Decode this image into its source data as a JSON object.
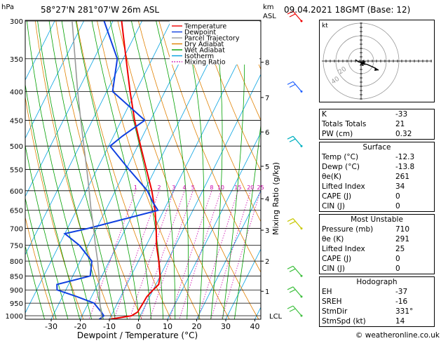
{
  "header": {
    "pressure_unit": "hPa",
    "location": "58°27'N  281°07'W  26m  ASL",
    "km_label": "km",
    "asl_label": "ASL",
    "datetime": "09.04.2021  18GMT  (Base: 12)"
  },
  "chart_data": {
    "type": "line",
    "xlabel": "Dewpoint / Temperature (°C)",
    "ylabel_right": "Mixing Ratio (g/kg)",
    "xlim": [
      -35,
      40
    ],
    "pressure_range": [
      1050,
      300
    ],
    "x_ticks": [
      -30,
      -20,
      -10,
      0,
      10,
      20,
      30,
      40
    ],
    "pressure_ticks": [
      300,
      350,
      400,
      450,
      500,
      550,
      600,
      650,
      700,
      750,
      800,
      850,
      900,
      950,
      1000
    ],
    "km_ticks": [
      {
        "km": "1",
        "p": 905
      },
      {
        "km": "2",
        "p": 800
      },
      {
        "km": "3",
        "p": 705
      },
      {
        "km": "4",
        "p": 620
      },
      {
        "km": "5",
        "p": 543
      },
      {
        "km": "6",
        "p": 472
      },
      {
        "km": "7",
        "p": 410
      },
      {
        "km": "8",
        "p": 355
      }
    ],
    "lcl_label": "LCL",
    "lcl_pressure": 1000,
    "mixing_ratio_labels": [
      "1",
      "2",
      "3",
      "4",
      "5",
      "8",
      "10",
      "15",
      "20",
      "25"
    ],
    "legend": [
      {
        "name": "Temperature",
        "color": "#ee0000"
      },
      {
        "name": "Dewpoint",
        "color": "#1040e0"
      },
      {
        "name": "Parcel Trajectory",
        "color": "#999999"
      },
      {
        "name": "Dry Adiabat",
        "color": "#e08000"
      },
      {
        "name": "Wet Adiabat",
        "color": "#00a000"
      },
      {
        "name": "Isotherm",
        "color": "#00a0e0"
      },
      {
        "name": "Mixing Ratio",
        "color": "#cc00aa"
      }
    ],
    "series": [
      {
        "name": "Temperature",
        "color": "#ee0000",
        "p": [
          1020,
          1000,
          985,
          950,
          925,
          900,
          880,
          850,
          800,
          750,
          700,
          650,
          600,
          550,
          500,
          450,
          400,
          350,
          300
        ],
        "t": [
          -12.3,
          -3.0,
          -1.5,
          -1.2,
          -1.0,
          0.0,
          1.0,
          0.0,
          -3.0,
          -6.5,
          -9.5,
          -13.0,
          -17.5,
          -23.0,
          -29.0,
          -35.5,
          -42.0,
          -49.0,
          -57.0
        ]
      },
      {
        "name": "Dewpoint",
        "color": "#1040e0",
        "p": [
          1020,
          1000,
          985,
          950,
          925,
          900,
          880,
          850,
          800,
          750,
          715,
          700,
          650,
          630,
          600,
          550,
          500,
          480,
          450,
          400,
          350,
          300
        ],
        "t": [
          -13.8,
          -12.5,
          -14.0,
          -18.0,
          -25.0,
          -33.0,
          -34.0,
          -24.0,
          -26.0,
          -33.0,
          -40.0,
          -33.0,
          -12.0,
          -15.0,
          -19.0,
          -29.0,
          -39.5,
          -37.0,
          -32.0,
          -48.0,
          -52.0,
          -63.0
        ]
      },
      {
        "name": "Parcel Trajectory",
        "color": "#999999",
        "p": [
          1020,
          1000,
          950,
          900,
          850,
          800,
          750,
          700,
          650,
          600,
          550,
          500,
          450,
          400,
          350,
          300
        ],
        "t": [
          -12.3,
          -13.3,
          -16.0,
          -18.5,
          -21.0,
          -24.0,
          -27.5,
          -31.0,
          -35.0,
          -39.0,
          -43.5,
          -48.5,
          -54.0,
          -60.0,
          -66.5,
          -74.0
        ]
      }
    ],
    "wind_barbs": [
      {
        "p": 300,
        "color": "#ee0000"
      },
      {
        "p": 400,
        "color": "#2060ff"
      },
      {
        "p": 500,
        "color": "#00b0c0"
      },
      {
        "p": 700,
        "color": "#c8c800"
      },
      {
        "p": 850,
        "color": "#40c040"
      },
      {
        "p": 925,
        "color": "#40c040"
      },
      {
        "p": 1000,
        "color": "#40c040"
      }
    ]
  },
  "hodograph": {
    "unit_label": "kt",
    "ring_labels": [
      "20",
      "40"
    ],
    "colors": {
      "circles": "#999999",
      "trace": "#000000"
    }
  },
  "indices": {
    "rows": [
      {
        "label": "K",
        "value": "-33"
      },
      {
        "label": "Totals Totals",
        "value": "21"
      },
      {
        "label": "PW (cm)",
        "value": "0.32"
      }
    ]
  },
  "surface": {
    "title": "Surface",
    "rows": [
      {
        "label": "Temp (°C)",
        "value": "-12.3"
      },
      {
        "label": "Dewp (°C)",
        "value": "-13.8"
      },
      {
        "label": "θe(K)",
        "value": "261"
      },
      {
        "label": "Lifted Index",
        "value": "34"
      },
      {
        "label": "CAPE (J)",
        "value": "0"
      },
      {
        "label": "CIN (J)",
        "value": "0"
      }
    ]
  },
  "most_unstable": {
    "title": "Most Unstable",
    "rows": [
      {
        "label": "Pressure (mb)",
        "value": "710"
      },
      {
        "label": "θe (K)",
        "value": "291"
      },
      {
        "label": "Lifted Index",
        "value": "25"
      },
      {
        "label": "CAPE (J)",
        "value": "0"
      },
      {
        "label": "CIN (J)",
        "value": "0"
      }
    ]
  },
  "hodograph_params": {
    "title": "Hodograph",
    "rows": [
      {
        "label": "EH",
        "value": "-37"
      },
      {
        "label": "SREH",
        "value": "-16"
      },
      {
        "label": "StmDir",
        "value": "331°"
      },
      {
        "label": "StmSpd (kt)",
        "value": "14"
      }
    ]
  },
  "footer": {
    "copyright": "© weatheronline.co.uk"
  }
}
